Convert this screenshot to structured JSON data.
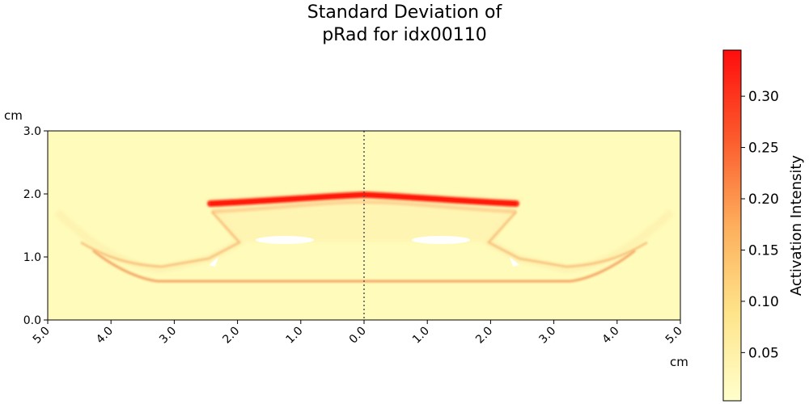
{
  "chart_data": {
    "type": "heatmap",
    "title_line1": "Standard Deviation of",
    "title_line2": "pRad for idx00110",
    "x_unit": "cm",
    "y_unit": "cm",
    "x_ticks": [
      "5.0",
      "4.0",
      "3.0",
      "2.0",
      "1.0",
      "0.0",
      "1.0",
      "2.0",
      "3.0",
      "4.0",
      "5.0"
    ],
    "y_ticks": [
      "0.0",
      "1.0",
      "2.0",
      "3.0"
    ],
    "xlim": [
      -5,
      5
    ],
    "ylim": [
      0,
      3
    ],
    "colorbar": {
      "label": "Activation Intensity",
      "range": [
        0.003,
        0.345
      ],
      "ticks": [
        "0.05",
        "0.10",
        "0.15",
        "0.20",
        "0.25",
        "0.30"
      ],
      "tick_values": [
        0.05,
        0.1,
        0.15,
        0.2,
        0.25,
        0.3
      ],
      "colormap": "YlOrRd-like"
    },
    "centerline_x": 0.0,
    "colors": {
      "background": "#fffcbb",
      "low": "#ffffcc",
      "mid": "#fd8d3c",
      "high": "#ff0000"
    }
  }
}
